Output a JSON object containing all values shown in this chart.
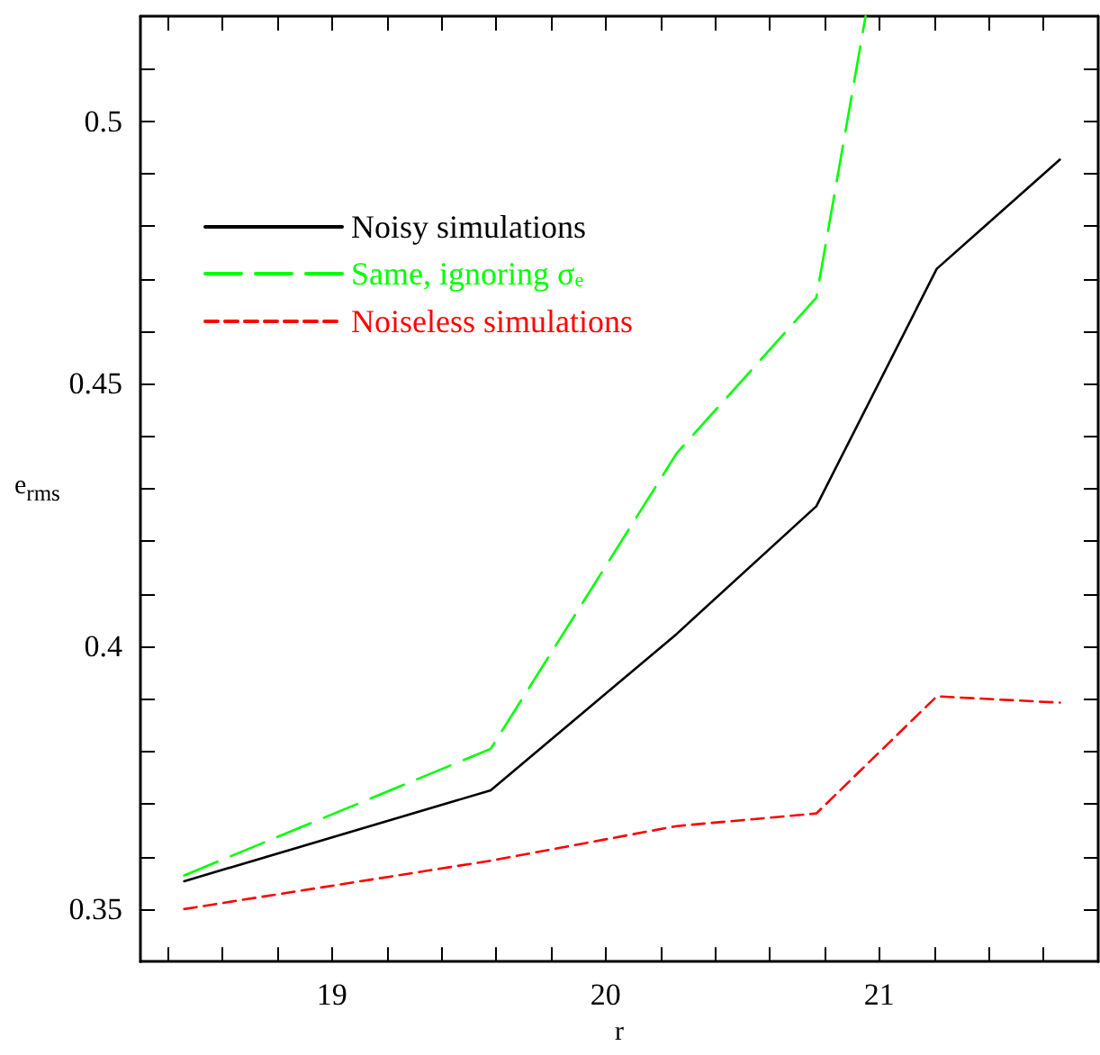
{
  "chart_data": {
    "type": "line",
    "xlabel": "r",
    "ylabel": "e$_{rms}$",
    "x": [
      18.46,
      19.58,
      20.26,
      20.77,
      21.21,
      21.66
    ],
    "series": [
      {
        "name": "Noisy simulations",
        "color": "#000000",
        "line_style": "solid",
        "values": [
          0.3553,
          0.3726,
          0.4024,
          0.4267,
          0.4719,
          0.4927
        ]
      },
      {
        "name": "Same, ignoring σ$_{e}$",
        "color": "#00ff00",
        "line_style": "dashed",
        "x": [
          18.46,
          19.58,
          20.26,
          20.77,
          20.95
        ],
        "values": [
          0.3564,
          0.3805,
          0.4368,
          0.4664,
          0.52
        ]
      },
      {
        "name": "Noiseless simulations",
        "color": "#ff0000",
        "line_style": "dashed",
        "values": [
          0.35,
          0.3592,
          0.3658,
          0.3682,
          0.3905,
          0.3893
        ]
      }
    ],
    "xlim": [
      18.3,
      21.8
    ],
    "xticks": [
      {
        "value": 18.4,
        "label": null
      },
      {
        "value": 18.6,
        "label": null
      },
      {
        "value": 18.8,
        "label": null
      },
      19,
      {
        "value": 19.2,
        "label": null
      },
      {
        "value": 19.4,
        "label": null
      },
      {
        "value": 19.6,
        "label": null
      },
      {
        "value": 19.8,
        "label": null
      },
      20,
      {
        "value": 20.2,
        "label": null
      },
      {
        "value": 20.4,
        "label": null
      },
      {
        "value": 20.6,
        "label": null
      },
      {
        "value": 20.8,
        "label": null
      },
      21,
      {
        "value": 21.2,
        "label": null
      },
      {
        "value": 21.4,
        "label": null
      },
      {
        "value": 21.6,
        "label": null
      }
    ],
    "ylim": [
      0.34,
      0.52
    ],
    "yticks": [
      0.35,
      {
        "value": 0.36,
        "label": null
      },
      {
        "value": 0.37,
        "label": null
      },
      {
        "value": 0.38,
        "label": null
      },
      {
        "value": 0.39,
        "label": null
      },
      0.4,
      {
        "value": 0.41,
        "label": null
      },
      {
        "value": 0.42,
        "label": null
      },
      {
        "value": 0.43,
        "label": null
      },
      {
        "value": 0.44,
        "label": null
      },
      0.45,
      {
        "value": 0.46,
        "label": null
      },
      {
        "value": 0.47,
        "label": null
      },
      {
        "value": 0.48,
        "label": null
      },
      {
        "value": 0.49,
        "label": null
      },
      0.5,
      {
        "value": 0.51,
        "label": null
      }
    ],
    "legend": "top left",
    "marker": "none",
    "grid": false
  }
}
